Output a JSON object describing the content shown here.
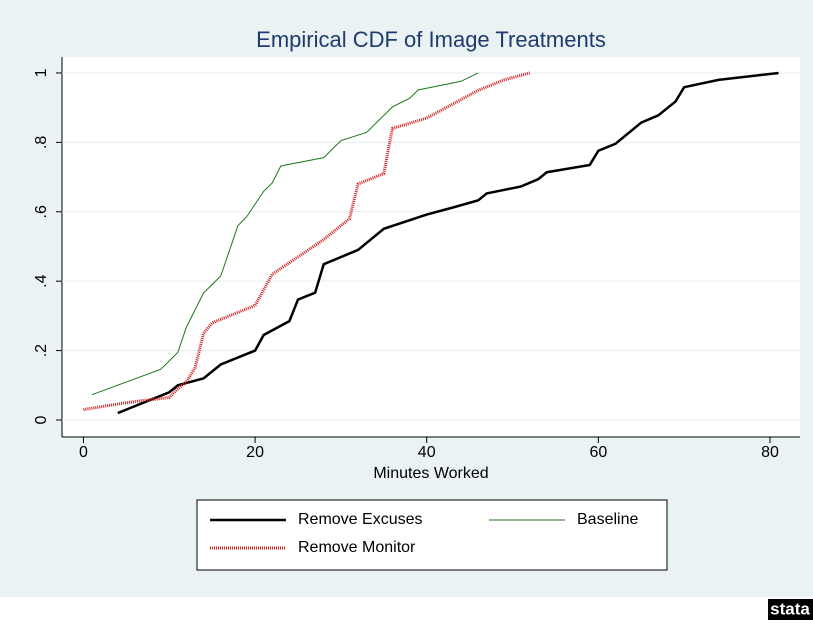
{
  "chart_data": {
    "type": "line",
    "title": "Empirical CDF of Image Treatments",
    "xlabel": "Minutes Worked",
    "xlim": [
      -2.5,
      83.5
    ],
    "ylim": [
      -0.049,
      1.046
    ],
    "xticks": [
      0,
      20,
      40,
      60,
      80
    ],
    "yticks": [
      0,
      {
        "value": 0.2,
        "label": ".2"
      },
      {
        "value": 0.4,
        "label": ".4"
      },
      {
        "value": 0.6,
        "label": ".6"
      },
      {
        "value": 0.8,
        "label": ".8"
      },
      1
    ],
    "grid": true,
    "legend": "bottom",
    "series": [
      {
        "name": "Remove Excuses",
        "color": "#000000",
        "style": "solid-thick",
        "x": [
          4,
          8,
          10,
          11,
          14,
          16,
          20,
          21,
          24,
          25,
          27,
          28,
          32,
          35,
          40,
          43,
          46,
          47,
          51,
          53,
          54,
          59,
          60,
          62,
          65,
          67,
          69,
          70,
          74,
          81
        ],
        "values": [
          0.02,
          0.06,
          0.08,
          0.1,
          0.12,
          0.16,
          0.2,
          0.245,
          0.285,
          0.347,
          0.367,
          0.449,
          0.49,
          0.551,
          0.592,
          0.612,
          0.633,
          0.653,
          0.673,
          0.694,
          0.714,
          0.735,
          0.776,
          0.796,
          0.857,
          0.878,
          0.918,
          0.959,
          0.98,
          1
        ]
      },
      {
        "name": "Baseline",
        "color": "#1a7a1a",
        "style": "solid-thin",
        "x": [
          1,
          9,
          11,
          12,
          14,
          16,
          18,
          19,
          21,
          22,
          23,
          28,
          30,
          33,
          36,
          38,
          39,
          44,
          46
        ],
        "values": [
          0.073,
          0.146,
          0.195,
          0.268,
          0.366,
          0.415,
          0.56,
          0.585,
          0.659,
          0.683,
          0.732,
          0.756,
          0.805,
          0.829,
          0.902,
          0.927,
          0.951,
          0.976,
          1
        ]
      },
      {
        "name": "Remove Monitor",
        "color": "#d02020",
        "style": "dotted",
        "x": [
          0,
          5,
          10,
          11,
          12,
          13,
          14,
          15,
          19,
          20,
          22,
          25,
          28,
          31,
          32,
          35,
          36,
          40,
          43,
          46,
          49,
          52
        ],
        "values": [
          0.03,
          0.05,
          0.065,
          0.09,
          0.11,
          0.15,
          0.25,
          0.28,
          0.32,
          0.33,
          0.42,
          0.47,
          0.52,
          0.58,
          0.68,
          0.71,
          0.84,
          0.87,
          0.91,
          0.95,
          0.98,
          1
        ]
      }
    ]
  },
  "logo": "stata"
}
